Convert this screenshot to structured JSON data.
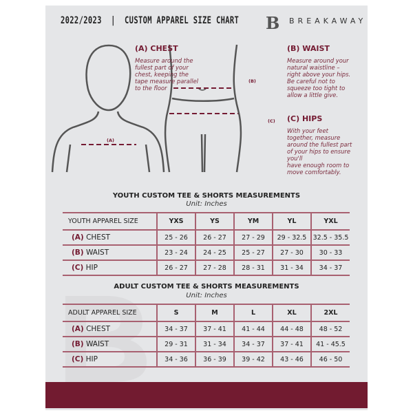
{
  "header": {
    "title": "2022/2023  |  CUSTOM APPAREL SIZE CHART",
    "brand": "BREAKAWAY",
    "logo_letter": "B"
  },
  "guide": {
    "chest": {
      "title": "(A) CHEST",
      "text": [
        "Measure around the",
        "fullest part of your",
        "chest, keeping the",
        "tape measure parallel",
        "to the floor"
      ],
      "marker": "(A)"
    },
    "waist": {
      "title": "(B) WAIST",
      "text": [
        "Measure around your",
        "natural waistline –",
        "right above your hips.",
        "Be careful not to",
        "squeeze too tight to",
        "allow a little give."
      ],
      "marker": "(B)"
    },
    "hips": {
      "title": "(C) HIPS",
      "text": [
        "With your feet",
        "together, measure",
        "around the fullest part",
        "of your hips to ensure",
        "you'll",
        "have enough room to",
        "move comfortably."
      ],
      "marker": "(C)"
    }
  },
  "youth": {
    "title": "YOUTH CUSTOM TEE & SHORTS MEASUREMENTS",
    "unit": "Unit: Inches",
    "header": "YOUTH APPAREL SIZE",
    "sizes": [
      "YXS",
      "YS",
      "YM",
      "YL",
      "YXL"
    ],
    "rows": [
      {
        "letter": "(A)",
        "label": "CHEST",
        "values": [
          "25 - 26",
          "26 - 27",
          "27 - 29",
          "29 - 32.5",
          "32.5 - 35.5"
        ]
      },
      {
        "letter": "(B)",
        "label": "WAIST",
        "values": [
          "23 - 24",
          "24 - 25",
          "25 - 27",
          "27 - 30",
          "30 - 33"
        ]
      },
      {
        "letter": "(C)",
        "label": "HIP",
        "values": [
          "26 - 27",
          "27 - 28",
          "28 - 31",
          "31 - 34",
          "34 - 37"
        ]
      }
    ]
  },
  "adult": {
    "title": "ADULT CUSTOM TEE & SHORTS MEASUREMENTS",
    "unit": "Unit: Inches",
    "header": "ADULT APPAREL SIZE",
    "sizes": [
      "S",
      "M",
      "L",
      "XL",
      "2XL"
    ],
    "rows": [
      {
        "letter": "(A)",
        "label": "CHEST",
        "values": [
          "34 - 37",
          "37 - 41",
          "41 - 44",
          "44 - 48",
          "48 - 52"
        ]
      },
      {
        "letter": "(B)",
        "label": "WAIST",
        "values": [
          "29 - 31",
          "31 - 34",
          "34 - 37",
          "37 - 41",
          "41 - 45.5"
        ]
      },
      {
        "letter": "(C)",
        "label": "HIP",
        "values": [
          "34 - 36",
          "36 - 39",
          "39 - 42",
          "43 - 46",
          "46 - 50"
        ]
      }
    ]
  },
  "colors": {
    "accent": "#721b30",
    "background": "#e5e6e8"
  }
}
